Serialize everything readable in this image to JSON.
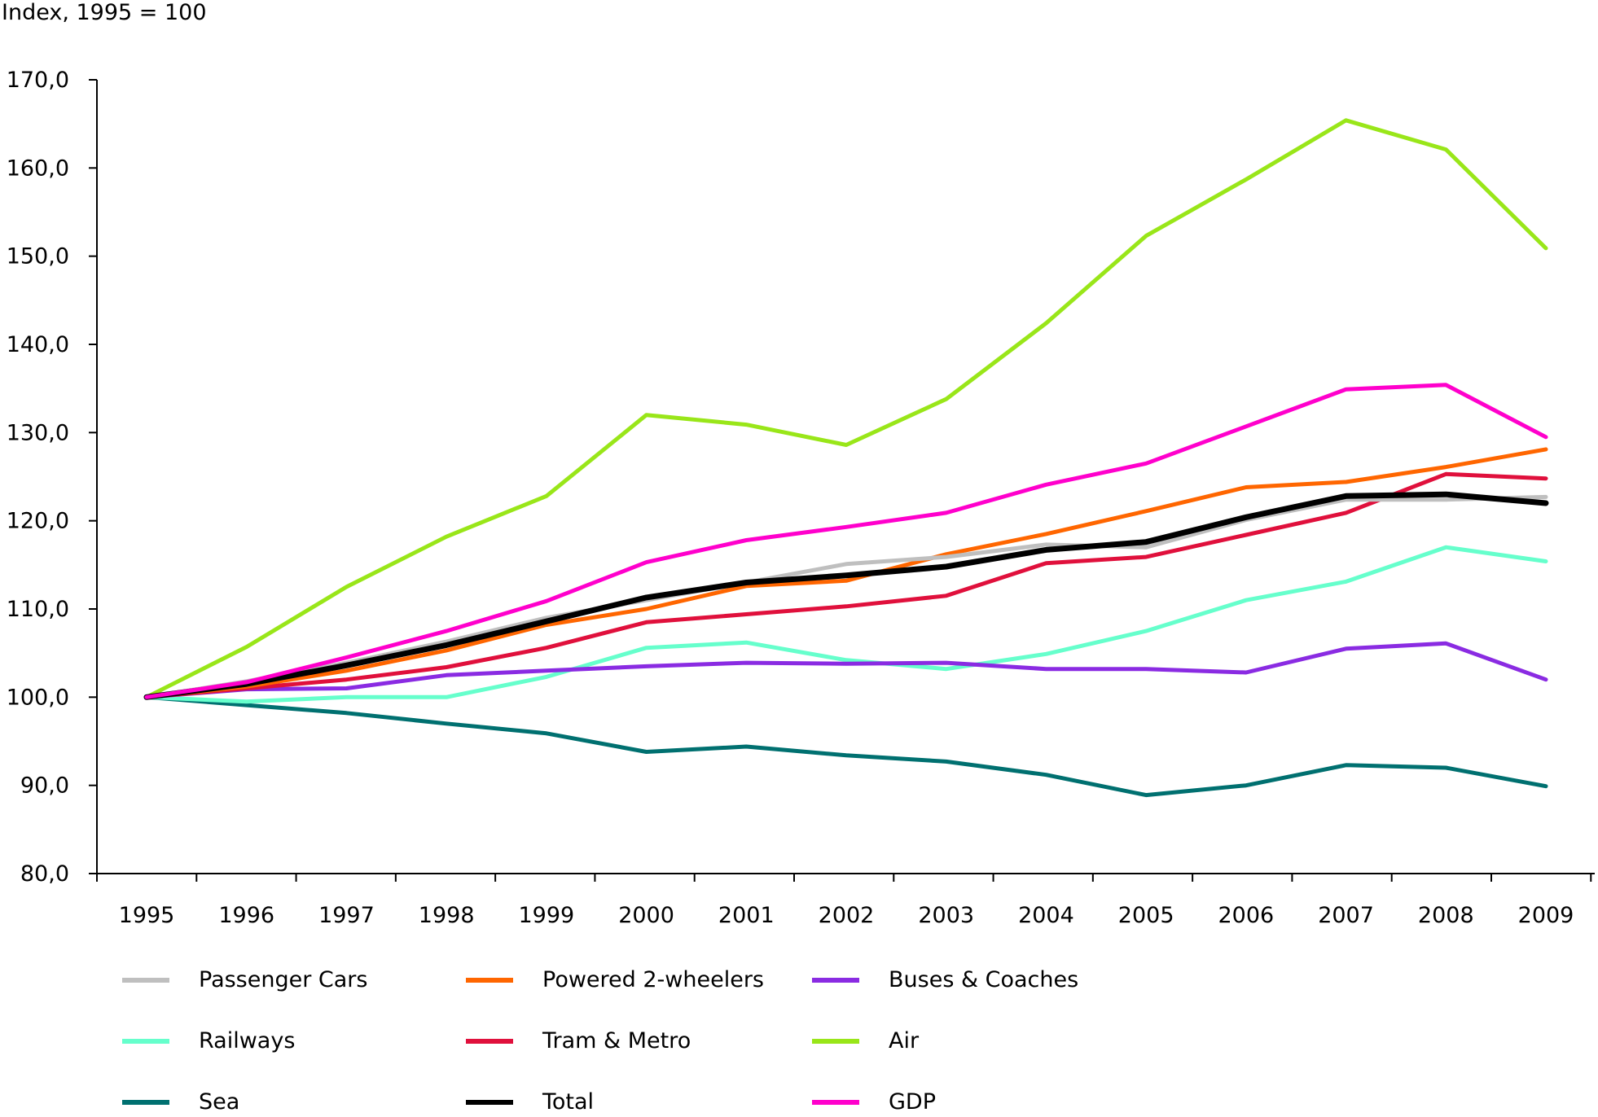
{
  "chart_data": {
    "type": "line",
    "title": "",
    "ylabel": "Index, 1995 = 100",
    "xlabel": "",
    "ylim": [
      80,
      170
    ],
    "yticks": [
      "80,0",
      "90,0",
      "100,0",
      "110,0",
      "120,0",
      "130,0",
      "140,0",
      "150,0",
      "160,0",
      "170,0"
    ],
    "x": [
      "1995",
      "1996",
      "1997",
      "1998",
      "1999",
      "2000",
      "2001",
      "2002",
      "2003",
      "2004",
      "2005",
      "2006",
      "2007",
      "2008",
      "2009"
    ],
    "grid": false,
    "legend_placement": "bottom",
    "series": [
      {
        "name": "Passenger Cars",
        "color": "#bfbfbf",
        "values": [
          100,
          101.8,
          103.9,
          106.3,
          109.0,
          111.0,
          113.0,
          115.1,
          115.9,
          117.3,
          117.0,
          120.1,
          122.4,
          122.4,
          122.7
        ]
      },
      {
        "name": "Powered 2-wheelers",
        "color": "#ff6600",
        "values": [
          100,
          101.2,
          103.0,
          105.3,
          108.2,
          110.0,
          112.6,
          113.2,
          116.2,
          118.5,
          121.1,
          123.8,
          124.4,
          126.1,
          128.1
        ]
      },
      {
        "name": "Buses & Coaches",
        "color": "#8a2be2",
        "values": [
          100,
          100.9,
          101.0,
          102.5,
          103.0,
          103.5,
          103.9,
          103.8,
          103.9,
          103.2,
          103.2,
          102.8,
          105.5,
          106.1,
          102.0
        ]
      },
      {
        "name": "Railways",
        "color": "#66ffcc",
        "values": [
          100,
          99.5,
          100.0,
          100.0,
          102.3,
          105.6,
          106.2,
          104.2,
          103.2,
          104.9,
          107.5,
          111.0,
          113.1,
          117.0,
          115.4
        ]
      },
      {
        "name": "Tram & Metro",
        "color": "#e0103c",
        "values": [
          100,
          101.0,
          102.0,
          103.4,
          105.6,
          108.5,
          109.4,
          110.3,
          111.5,
          115.2,
          115.9,
          118.4,
          120.9,
          125.3,
          124.8
        ]
      },
      {
        "name": "Air",
        "color": "#99e619",
        "values": [
          100,
          105.7,
          112.5,
          118.2,
          122.8,
          132.0,
          130.9,
          128.6,
          133.8,
          142.4,
          152.3,
          158.7,
          165.4,
          162.1,
          150.9
        ]
      },
      {
        "name": "Sea",
        "color": "#007070",
        "values": [
          100,
          99.1,
          98.2,
          97.0,
          95.9,
          93.8,
          94.4,
          93.4,
          92.7,
          91.2,
          88.9,
          90.0,
          92.3,
          92.0,
          89.9
        ]
      },
      {
        "name": "Total",
        "color": "#000000",
        "values": [
          100,
          101.5,
          103.6,
          105.9,
          108.6,
          111.3,
          113.0,
          113.8,
          114.8,
          116.7,
          117.6,
          120.4,
          122.8,
          123.0,
          122.0
        ]
      },
      {
        "name": "GDP",
        "color": "#ff00cc",
        "values": [
          100,
          101.7,
          104.5,
          107.5,
          110.9,
          115.3,
          117.8,
          119.3,
          120.9,
          124.1,
          126.5,
          130.7,
          134.9,
          135.4,
          129.5
        ]
      }
    ]
  }
}
